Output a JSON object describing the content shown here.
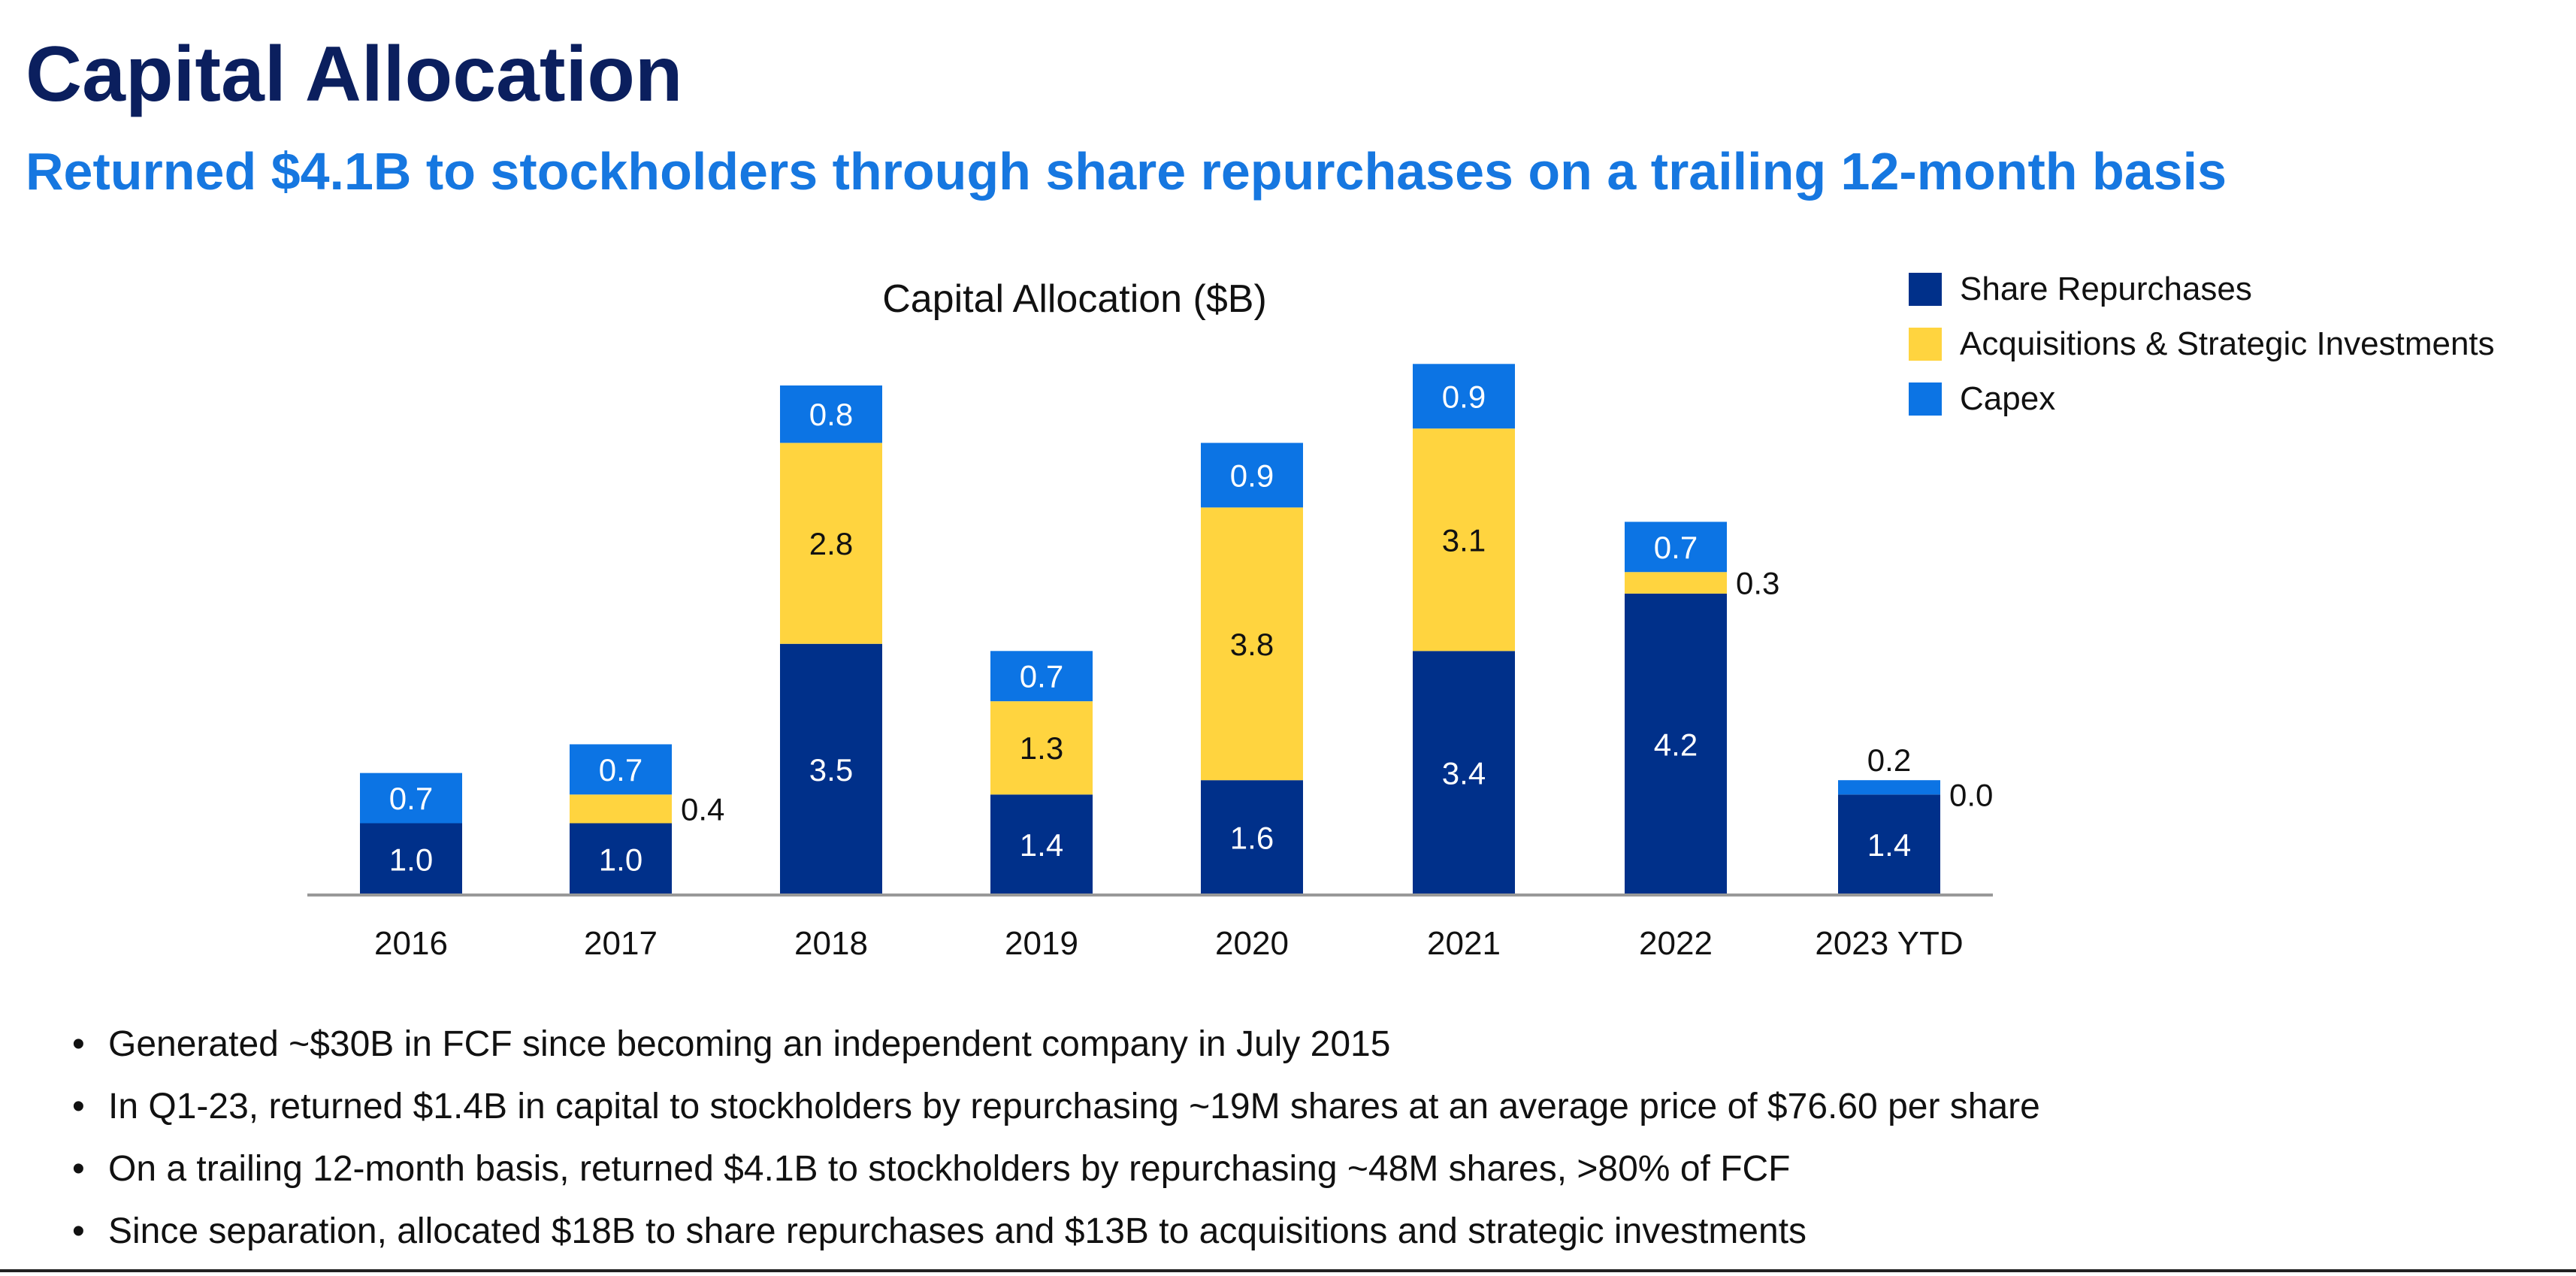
{
  "header": {
    "title": "Capital Allocation",
    "subtitle": "Returned $4.1B to stockholders through share repurchases on a trailing 12-month basis"
  },
  "chart_data": {
    "type": "bar",
    "stacked": true,
    "title": "Capital Allocation ($B)",
    "xlabel": "",
    "ylabel": "",
    "categories": [
      "2016",
      "2017",
      "2018",
      "2019",
      "2020",
      "2021",
      "2022",
      "2023 YTD"
    ],
    "series": [
      {
        "name": "Share Repurchases",
        "color": "#00308a",
        "label_color": "#ffffff",
        "values": [
          1.0,
          1.0,
          3.5,
          1.4,
          1.6,
          3.4,
          4.2,
          1.4
        ],
        "labels": [
          "1.0",
          "1.0",
          "3.5",
          "1.4",
          "1.6",
          "3.4",
          "4.2",
          "1.4"
        ]
      },
      {
        "name": "Acquisitions & Strategic Investments",
        "color": "#ffd43f",
        "label_color": "#111111",
        "values": [
          0.0,
          0.4,
          2.8,
          1.3,
          3.8,
          3.1,
          0.3,
          0.0
        ],
        "labels": [
          "",
          "0.4",
          "2.8",
          "1.3",
          "3.8",
          "3.1",
          "0.3",
          "0.0"
        ]
      },
      {
        "name": "Capex",
        "color": "#0c74e4",
        "label_color": "#ffffff",
        "values": [
          0.7,
          0.7,
          0.8,
          0.7,
          0.9,
          0.9,
          0.7,
          0.2
        ],
        "labels": [
          "0.7",
          "0.7",
          "0.8",
          "0.7",
          "0.9",
          "0.9",
          "0.7",
          "0.2"
        ]
      }
    ],
    "ylim": [
      0,
      8
    ],
    "grid": false,
    "legend": "top-right"
  },
  "bullets": [
    "Generated ~$30B in FCF since becoming an independent company in July 2015",
    "In Q1-23, returned $1.4B in capital to stockholders by repurchasing ~19M shares at an average price of $76.60 per share",
    "On a trailing 12-month basis, returned $4.1B to stockholders by repurchasing ~48M shares, >80% of FCF",
    "Since separation, allocated $18B to share repurchases and $13B to acquisitions and strategic investments"
  ],
  "bullet_glyph": "•"
}
